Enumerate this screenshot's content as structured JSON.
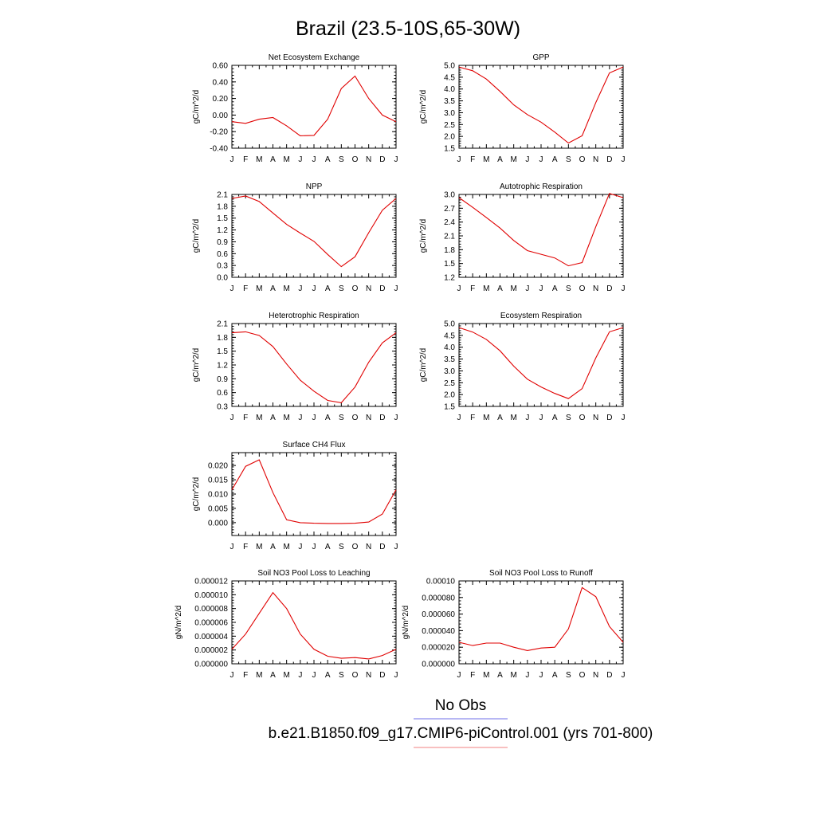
{
  "figure": {
    "title": "Brazil (23.5-10S,65-30W)",
    "legend": [
      {
        "label": "No Obs",
        "color": "#6f6fe8"
      },
      {
        "label": "b.e21.B1850.f09_g17.CMIP6-piControl.001 (yrs 701-800)",
        "color": "#f08080"
      }
    ],
    "line_color": "#e00000"
  },
  "chart_data": [
    {
      "type": "line",
      "title": "Net Ecosystem Exchange",
      "ylabel": "gC/m^2/d",
      "xlabel": "",
      "categories": [
        "J",
        "F",
        "M",
        "A",
        "M",
        "J",
        "J",
        "A",
        "S",
        "O",
        "N",
        "D",
        "J"
      ],
      "ylim": [
        -0.4,
        0.6
      ],
      "yticks": [
        -0.4,
        -0.2,
        0.0,
        0.2,
        0.4,
        0.6
      ],
      "yticklabels": [
        "-0.40",
        "-0.20",
        "0.00",
        "0.20",
        "0.40",
        "0.60"
      ],
      "values": [
        -0.08,
        -0.1,
        -0.05,
        -0.03,
        -0.13,
        -0.25,
        -0.245,
        -0.05,
        0.32,
        0.47,
        0.2,
        0.0,
        -0.08
      ]
    },
    {
      "type": "line",
      "title": "GPP",
      "ylabel": "gC/m^2/d",
      "xlabel": "",
      "categories": [
        "J",
        "F",
        "M",
        "A",
        "M",
        "J",
        "J",
        "A",
        "S",
        "O",
        "N",
        "D",
        "J"
      ],
      "ylim": [
        1.5,
        5.0
      ],
      "yticks": [
        1.5,
        2.0,
        2.5,
        3.0,
        3.5,
        4.0,
        4.5,
        5.0
      ],
      "yticklabels": [
        "1.5",
        "2.0",
        "2.5",
        "3.0",
        "3.5",
        "4.0",
        "4.5",
        "5.0"
      ],
      "values": [
        4.93,
        4.77,
        4.42,
        3.9,
        3.33,
        2.92,
        2.6,
        2.18,
        1.72,
        2.03,
        3.43,
        4.68,
        4.93
      ]
    },
    {
      "type": "line",
      "title": "NPP",
      "ylabel": "gC/m^2/d",
      "xlabel": "",
      "categories": [
        "J",
        "F",
        "M",
        "A",
        "M",
        "J",
        "J",
        "A",
        "S",
        "O",
        "N",
        "D",
        "J"
      ],
      "ylim": [
        0.0,
        2.1
      ],
      "yticks": [
        0.0,
        0.3,
        0.6,
        0.9,
        1.2,
        1.5,
        1.8,
        2.1
      ],
      "yticklabels": [
        "0.0",
        "0.3",
        "0.6",
        "0.9",
        "1.2",
        "1.5",
        "1.8",
        "2.1"
      ],
      "values": [
        2.0,
        2.06,
        1.92,
        1.63,
        1.34,
        1.12,
        0.91,
        0.58,
        0.27,
        0.52,
        1.13,
        1.7,
        2.0
      ]
    },
    {
      "type": "line",
      "title": "Autotrophic Respiration",
      "ylabel": "gC/m^2/d",
      "xlabel": "",
      "categories": [
        "J",
        "F",
        "M",
        "A",
        "M",
        "J",
        "J",
        "A",
        "S",
        "O",
        "N",
        "D",
        "J"
      ],
      "ylim": [
        1.2,
        3.0
      ],
      "yticks": [
        1.2,
        1.5,
        1.8,
        2.1,
        2.4,
        2.7,
        3.0
      ],
      "yticklabels": [
        "1.2",
        "1.5",
        "1.8",
        "2.1",
        "2.4",
        "2.7",
        "3.0"
      ],
      "values": [
        2.93,
        2.72,
        2.5,
        2.27,
        2.0,
        1.78,
        1.7,
        1.62,
        1.45,
        1.52,
        2.3,
        3.02,
        2.93
      ]
    },
    {
      "type": "line",
      "title": "Heterotrophic Respiration",
      "ylabel": "gC/m^2/d",
      "xlabel": "",
      "categories": [
        "J",
        "F",
        "M",
        "A",
        "M",
        "J",
        "J",
        "A",
        "S",
        "O",
        "N",
        "D",
        "J"
      ],
      "ylim": [
        0.3,
        2.1
      ],
      "yticks": [
        0.3,
        0.6,
        0.9,
        1.2,
        1.5,
        1.8,
        2.1
      ],
      "yticklabels": [
        "0.3",
        "0.6",
        "0.9",
        "1.2",
        "1.5",
        "1.8",
        "2.1"
      ],
      "values": [
        1.9,
        1.92,
        1.84,
        1.6,
        1.22,
        0.87,
        0.63,
        0.43,
        0.38,
        0.72,
        1.26,
        1.68,
        1.9
      ]
    },
    {
      "type": "line",
      "title": "Ecosystem Respiration",
      "ylabel": "gC/m^2/d",
      "xlabel": "",
      "categories": [
        "J",
        "F",
        "M",
        "A",
        "M",
        "J",
        "J",
        "A",
        "S",
        "O",
        "N",
        "D",
        "J"
      ],
      "ylim": [
        1.5,
        5.0
      ],
      "yticks": [
        1.5,
        2.0,
        2.5,
        3.0,
        3.5,
        4.0,
        4.5,
        5.0
      ],
      "yticklabels": [
        "1.5",
        "2.0",
        "2.5",
        "3.0",
        "3.5",
        "4.0",
        "4.5",
        "5.0"
      ],
      "values": [
        4.83,
        4.64,
        4.33,
        3.85,
        3.2,
        2.65,
        2.32,
        2.05,
        1.83,
        2.25,
        3.55,
        4.65,
        4.83
      ]
    },
    {
      "type": "line",
      "title": "Surface CH4 Flux",
      "ylabel": "gC/m^2/d",
      "xlabel": "",
      "categories": [
        "J",
        "F",
        "M",
        "A",
        "M",
        "J",
        "J",
        "A",
        "S",
        "O",
        "N",
        "D",
        "J"
      ],
      "ylim": [
        -0.0045,
        0.0245
      ],
      "yticks": [
        0.0,
        0.005,
        0.01,
        0.015,
        0.02
      ],
      "yticklabels": [
        "0.000",
        "0.005",
        "0.010",
        "0.015",
        "0.020"
      ],
      "values": [
        0.0115,
        0.0197,
        0.022,
        0.0105,
        0.001,
        0.0,
        -0.0002,
        -0.0003,
        -0.0003,
        -0.0002,
        0.0002,
        0.003,
        0.0115
      ]
    },
    {
      "type": "line",
      "title": "Soil NO3 Pool Loss to Leaching",
      "ylabel": "gN/m^2/d",
      "xlabel": "",
      "categories": [
        "J",
        "F",
        "M",
        "A",
        "M",
        "J",
        "J",
        "A",
        "S",
        "O",
        "N",
        "D",
        "J"
      ],
      "ylim": [
        0.0,
        1.2e-05
      ],
      "yticks": [
        0.0,
        2e-06,
        4e-06,
        6e-06,
        8e-06,
        1e-05,
        1.2e-05
      ],
      "yticklabels": [
        "0.000000",
        "0.000002",
        "0.000004",
        "0.000006",
        "0.000008",
        "0.000010",
        "0.000012"
      ],
      "values": [
        2.1e-06,
        4.3e-06,
        7.3e-06,
        1.03e-05,
        8e-06,
        4.3e-06,
        2.1e-06,
        1.1e-06,
        8e-07,
        9e-07,
        7e-07,
        1.2e-06,
        2.1e-06
      ]
    },
    {
      "type": "line",
      "title": "Soil NO3 Pool Loss to Runoff",
      "ylabel": "gN/m^2/d",
      "xlabel": "",
      "categories": [
        "J",
        "F",
        "M",
        "A",
        "M",
        "J",
        "J",
        "A",
        "S",
        "O",
        "N",
        "D",
        "J"
      ],
      "ylim": [
        0.0,
        0.0001
      ],
      "yticks": [
        0.0,
        2e-05,
        4e-05,
        6e-05,
        8e-05,
        0.0001
      ],
      "yticklabels": [
        "0.000000",
        "0.000020",
        "0.000040",
        "0.000060",
        "0.000080",
        "0.00010"
      ],
      "values": [
        2.6e-05,
        2.2e-05,
        2.5e-05,
        2.5e-05,
        2e-05,
        1.6e-05,
        1.9e-05,
        2e-05,
        4.2e-05,
        9.2e-05,
        8.1e-05,
        4.5e-05,
        2.6e-05
      ]
    }
  ]
}
